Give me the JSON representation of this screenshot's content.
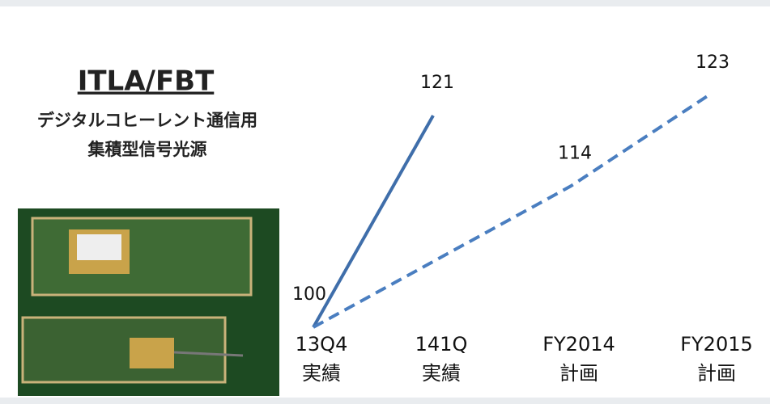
{
  "header": {
    "title": "ITLA/FBT",
    "subtitle": [
      "デジタルコヒーレント通信用",
      "集積型信号光源"
    ]
  },
  "chart_data": {
    "type": "line",
    "categories": [
      "13Q4\n実績",
      "141Q\n実績",
      "FY2014\n計画",
      "FY2015\n計画"
    ],
    "ylim": [
      100,
      123
    ],
    "series": [
      {
        "color": "#3f6eaa",
        "style": "solid",
        "values": [
          100,
          121,
          null,
          null
        ]
      },
      {
        "color": "#4a7ec0",
        "style": "dashed",
        "values": [
          100,
          null,
          114,
          123
        ]
      }
    ]
  }
}
